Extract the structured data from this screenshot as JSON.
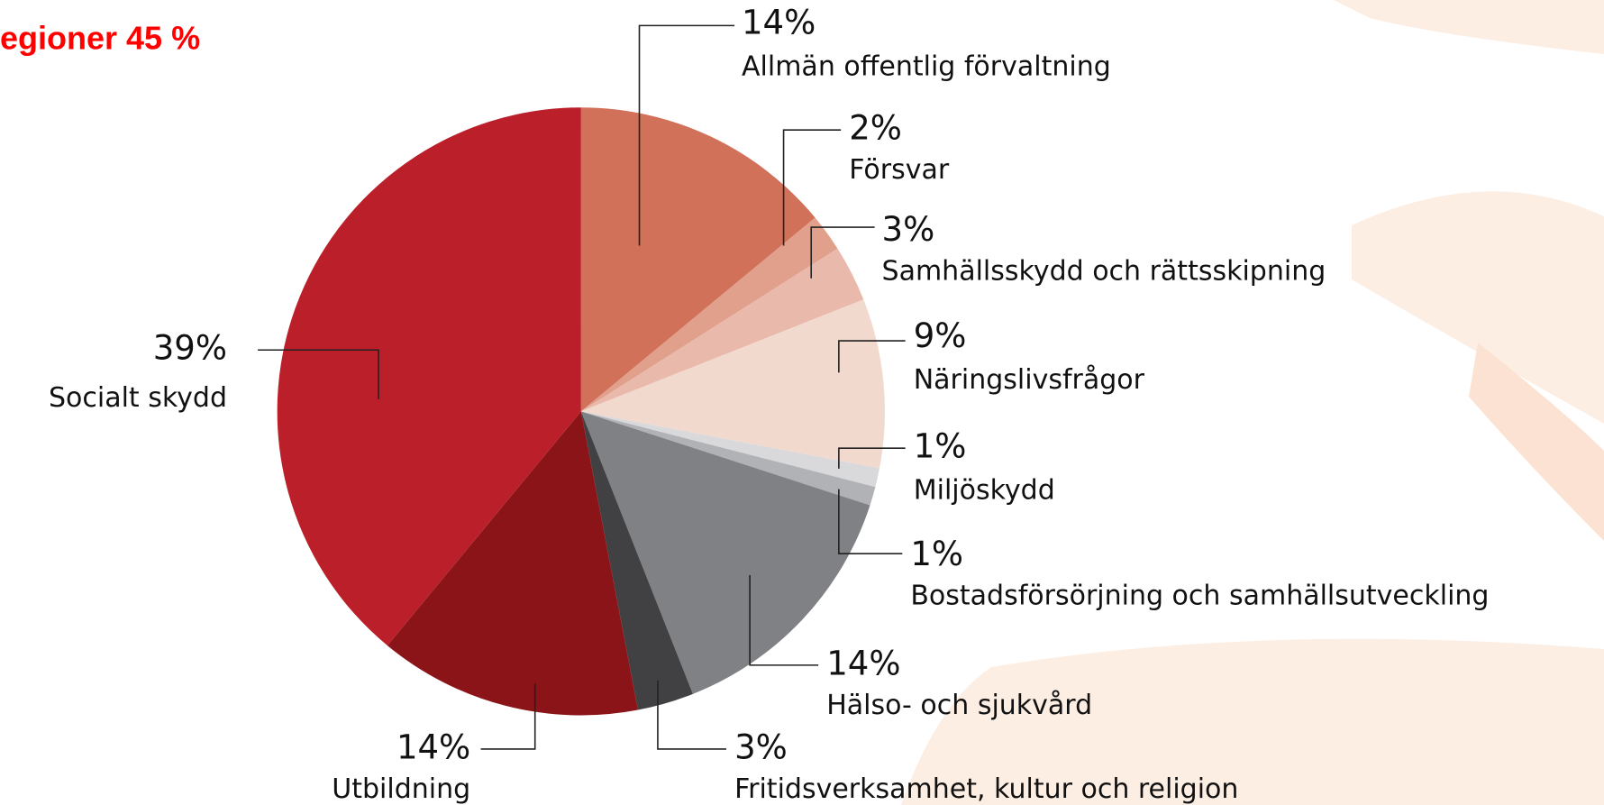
{
  "chart_data": {
    "type": "pie",
    "title": "egioner 45 %",
    "categories": [
      "Allmän offentlig förvaltning",
      "Försvar",
      "Samhällsskydd och rättsskipning",
      "Näringslivsfrågor",
      "Miljöskydd",
      "Bostadsförsörjning och samhällsutveckling",
      "Hälso- och sjukvård",
      "Fritidsverksamhet, kultur och religion",
      "Utbildning",
      "Socialt skydd"
    ],
    "values": [
      14,
      2,
      3,
      9,
      1,
      1,
      14,
      3,
      14,
      39
    ],
    "value_labels": [
      "14%",
      "2%",
      "3%",
      "9%",
      "1%",
      "1%",
      "14%",
      "3%",
      "14%",
      "39%"
    ],
    "colors": [
      "#d1715a",
      "#e0a08c",
      "#e9b9ab",
      "#f2d9ce",
      "#d9d9db",
      "#b1b2b5",
      "#808185",
      "#414143",
      "#8a1418",
      "#bb202a"
    ]
  }
}
